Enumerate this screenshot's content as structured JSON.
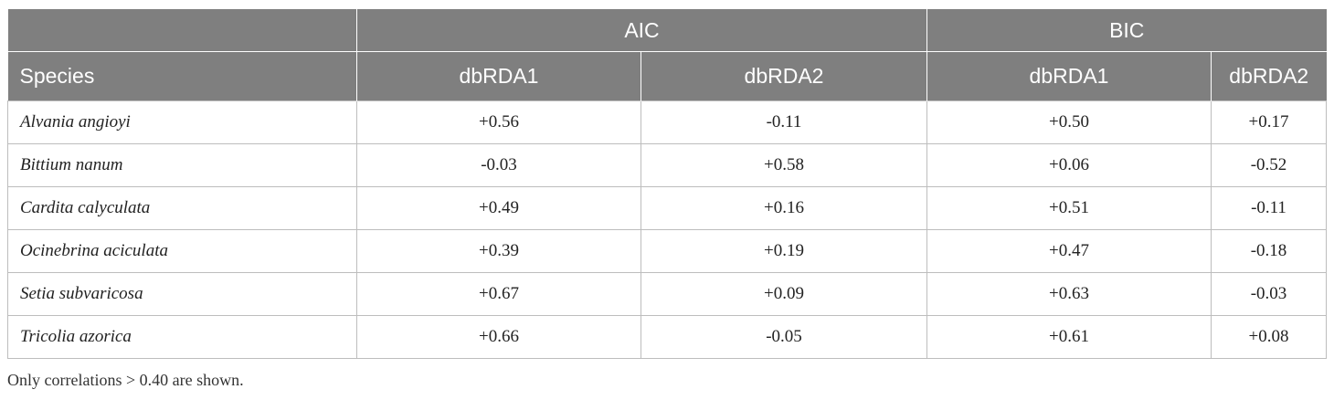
{
  "table": {
    "groups": {
      "aic": "AIC",
      "bic": "BIC"
    },
    "columns": {
      "species": "Species",
      "aic_dbrda1": "dbRDA1",
      "aic_dbrda2": "dbRDA2",
      "bic_dbrda1": "dbRDA1",
      "bic_dbrda2": "dbRDA2"
    },
    "rows": [
      {
        "species": "Alvania angioyi",
        "aic_dbrda1": "+0.56",
        "aic_dbrda2": "-0.11",
        "bic_dbrda1": "+0.50",
        "bic_dbrda2": "+0.17"
      },
      {
        "species": "Bittium nanum",
        "aic_dbrda1": "-0.03",
        "aic_dbrda2": "+0.58",
        "bic_dbrda1": "+0.06",
        "bic_dbrda2": "-0.52"
      },
      {
        "species": "Cardita calyculata",
        "aic_dbrda1": "+0.49",
        "aic_dbrda2": "+0.16",
        "bic_dbrda1": "+0.51",
        "bic_dbrda2": "-0.11"
      },
      {
        "species": "Ocinebrina aciculata",
        "aic_dbrda1": "+0.39",
        "aic_dbrda2": "+0.19",
        "bic_dbrda1": "+0.47",
        "bic_dbrda2": "-0.18"
      },
      {
        "species": "Setia subvaricosa",
        "aic_dbrda1": "+0.67",
        "aic_dbrda2": "+0.09",
        "bic_dbrda1": "+0.63",
        "bic_dbrda2": "-0.03"
      },
      {
        "species": "Tricolia azorica",
        "aic_dbrda1": "+0.66",
        "aic_dbrda2": "-0.05",
        "bic_dbrda1": "+0.61",
        "bic_dbrda2": "+0.08"
      }
    ]
  },
  "footnote": "Only correlations > 0.40 are shown."
}
